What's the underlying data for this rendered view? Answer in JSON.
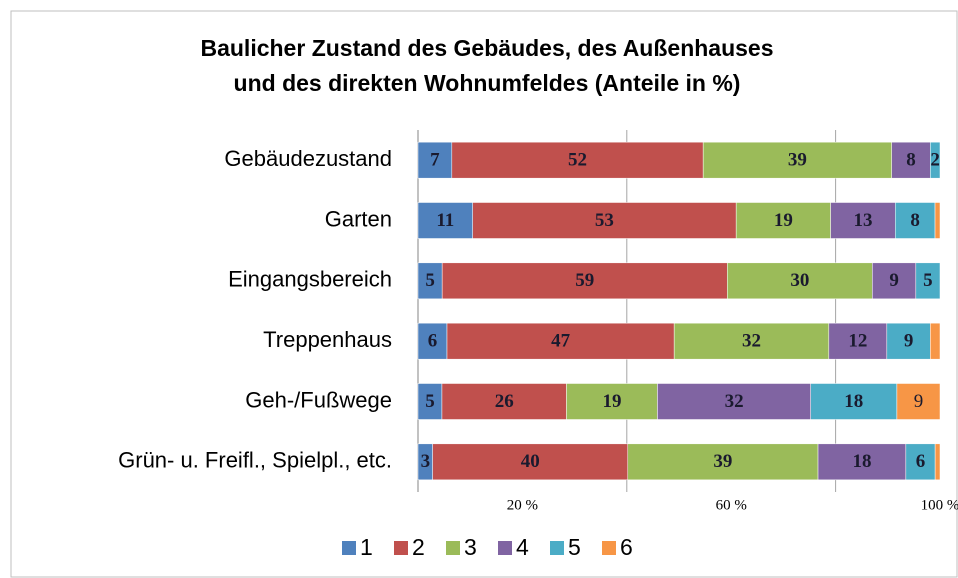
{
  "chart_data": {
    "type": "stacked_bar_percent",
    "title": "Baulicher Zustand des Gebäudes, des Außenhauses",
    "subtitle": "und des direkten Wohnumfeldes (Anteile in %)",
    "categories": [
      "Gebäudezustand",
      "Garten",
      "Eingangsbereich",
      "Treppenhaus",
      "Geh-/Fußwege",
      "Grün- u. Freifl., Spielpl., etc."
    ],
    "series": [
      {
        "name": "1",
        "color": "#4f81bd",
        "values": [
          7,
          11,
          5,
          6,
          5,
          3
        ]
      },
      {
        "name": "2",
        "color": "#c0504d",
        "values": [
          52,
          53,
          59,
          47,
          26,
          40
        ]
      },
      {
        "name": "3",
        "color": "#9bbb59",
        "values": [
          39,
          19,
          30,
          32,
          19,
          39
        ]
      },
      {
        "name": "4",
        "color": "#8064a2",
        "values": [
          8,
          13,
          9,
          12,
          32,
          18
        ]
      },
      {
        "name": "5",
        "color": "#4bacc6",
        "values": [
          2,
          8,
          5,
          9,
          18,
          6
        ]
      },
      {
        "name": "6",
        "color": "#f79646",
        "values": [
          0,
          1,
          0,
          2,
          9,
          1
        ],
        "value_labels": [
          null,
          null,
          null,
          null,
          "9",
          null
        ]
      }
    ],
    "xlim": [
      0,
      100
    ],
    "xticks": [
      {
        "value": 20,
        "label": "20 %"
      },
      {
        "value": 60,
        "label": "60 %"
      },
      {
        "value": 100,
        "label": "100 %"
      }
    ],
    "gridlines": [
      40,
      80
    ],
    "legend": "bottom"
  }
}
